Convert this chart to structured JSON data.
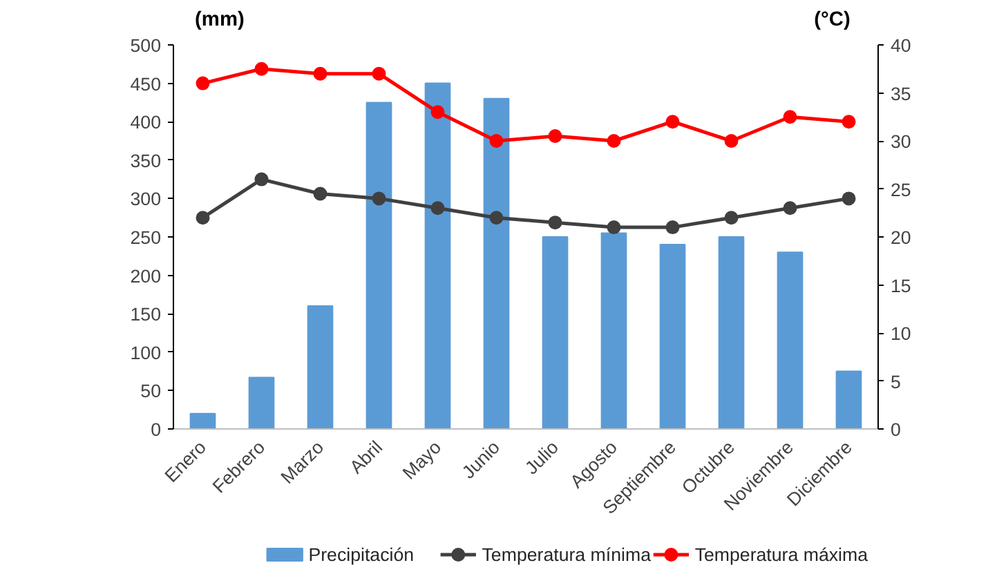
{
  "chart_data": {
    "type": "bar",
    "categories": [
      "Enero",
      "Febrero",
      "Marzo",
      "Abril",
      "Mayo",
      "Junio",
      "Julio",
      "Agosto",
      "Septiembre",
      "Octubre",
      "Noviembre",
      "Diciembre"
    ],
    "ylabel": "(mm)",
    "y2label": "(°C)",
    "ylim": [
      0,
      500
    ],
    "yticks": [
      0,
      50,
      100,
      150,
      200,
      250,
      300,
      350,
      400,
      450,
      500
    ],
    "y2lim": [
      0,
      40
    ],
    "y2ticks": [
      0,
      5,
      10,
      15,
      20,
      25,
      30,
      35,
      40
    ],
    "grid": false,
    "legend": "bottom",
    "marker": "circle",
    "series": [
      {
        "name": "Precipitación",
        "color": "#5b9bd5",
        "values": [
          20,
          67,
          160,
          425,
          450,
          430,
          250,
          255,
          240,
          250,
          230,
          75
        ]
      },
      {
        "name": "Temperatura mínima",
        "type": "line",
        "axis": "y2",
        "color": "#404040",
        "values": [
          22,
          26,
          24.5,
          24,
          23,
          22,
          21.5,
          21,
          21,
          22,
          23,
          24
        ]
      },
      {
        "name": "Temperatura máxima",
        "type": "line",
        "axis": "y2",
        "color": "#ff0000",
        "values": [
          36,
          37.5,
          37,
          37,
          33,
          30,
          30.5,
          30,
          32,
          30,
          32.5,
          32
        ]
      }
    ]
  }
}
